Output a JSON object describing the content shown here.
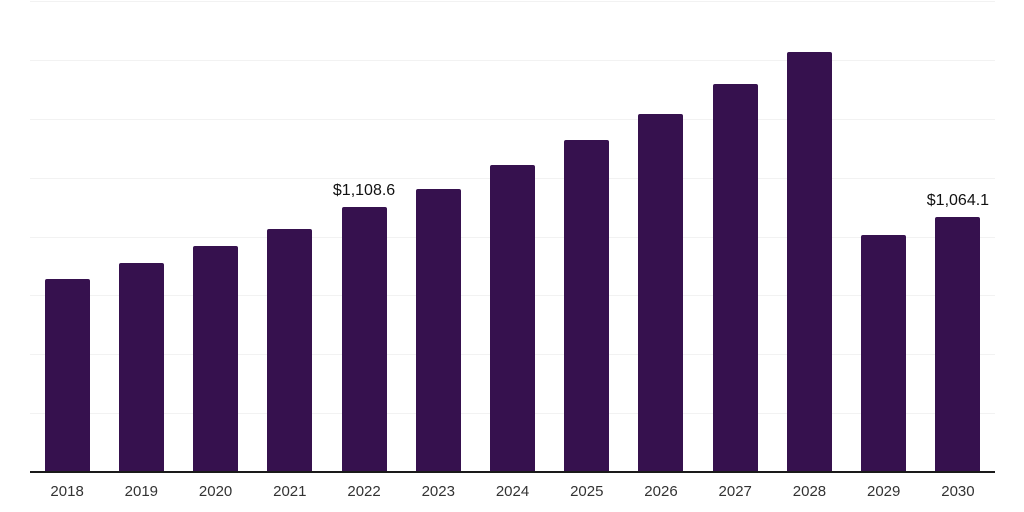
{
  "chart_data": {
    "type": "bar",
    "categories": [
      "2018",
      "2019",
      "2020",
      "2021",
      "2022",
      "2023",
      "2024",
      "2025",
      "2026",
      "2027",
      "2028",
      "2029",
      "2030"
    ],
    "values": [
      807,
      875,
      946,
      1015,
      1108.6,
      1182,
      1283,
      1386,
      1498,
      1620,
      1754,
      989,
      1064.1
    ],
    "data_labels": [
      "",
      "",
      "",
      "",
      "$1,108.6",
      "",
      "",
      "",
      "",
      "",
      "",
      "",
      "$1,064.1"
    ],
    "title": "",
    "xlabel": "",
    "ylabel": "",
    "ylim": [
      0,
      1968
    ],
    "y_axis_labels_visible": false,
    "gridlines": {
      "orientation": "horizontal",
      "count": 8,
      "color": "#f2f2f2"
    },
    "legend": "none",
    "colors": {
      "bar": "#36114E",
      "axis_line": "#1a1a1a",
      "tick_label": "#333333",
      "data_label": "#111111",
      "background": "#ffffff"
    }
  }
}
